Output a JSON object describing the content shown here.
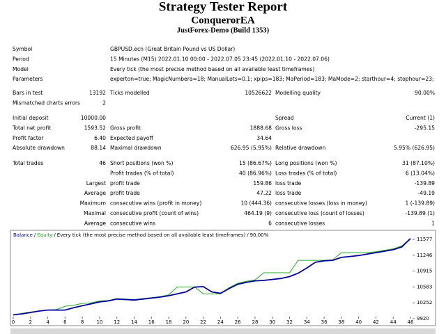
{
  "header": {
    "title": "Strategy Tester Report",
    "expert": "ConquerorEA",
    "server": "JustForex-Demo (Build 1353)"
  },
  "sections": [
    [
      {
        "l1": "Symbol",
        "text": "GBPUSD.ecn (Great Britain Pound vs US Dollar)"
      },
      {
        "l1": "Period",
        "text": "15 Minutes (M15) 2022.01.10 00:00 - 2022.07.05 23:45 (2022.01.10 - 2022.07.06)"
      },
      {
        "l1": "Model",
        "text": "Every tick (the most precise method based on all available least timeframes)"
      },
      {
        "l1": "Parameters",
        "text": "experton=true; MagicNumbera=18; ManualLots=0.1; xpips=183; MaPeriod=183; MaMode=2; starthour=4; stophour=23;"
      }
    ],
    [
      {
        "l1": "Bars in test",
        "v1": "13192",
        "l2": "Ticks modelled",
        "v2": "10526622",
        "l3": "Modelling quality",
        "v3": "90.00%"
      },
      {
        "l1": "Mismatched charts errors",
        "v1": "2"
      }
    ],
    [
      {
        "l1": "Initial deposit",
        "v1": "10000.00",
        "l3": "Spread",
        "v3": "Current (1)"
      },
      {
        "l1": "Total net profit",
        "v1": "1593.52",
        "l2": "Gross profit",
        "v2": "1888.68",
        "l3": "Gross loss",
        "v3": "-295.15"
      },
      {
        "l1": "Profit factor",
        "v1": "6.40",
        "l2": "Expected payoff",
        "v2": "34.64"
      },
      {
        "l1": "Absolute drawdown",
        "v1": "88.14",
        "l2": "Maximal drawdown",
        "v2": "626.95 (5.95%)",
        "l3": "Relative drawdown",
        "v3": "5.95% (626.95)"
      }
    ],
    [
      {
        "l1": "Total trades",
        "v1": "46",
        "l2": "Short positions (won %)",
        "v2": "15 (86.67%)",
        "l3": "Long positions (won %)",
        "v3": "31 (87.10%)"
      },
      {
        "l2": "Profit trades (% of total)",
        "v2": "40 (86.96%)",
        "l3": "Loss trades (% of total)",
        "v3": "6 (13.04%)"
      },
      {
        "v1": "Largest",
        "l2": "profit trade",
        "v2": "159.86",
        "l3": "loss trade",
        "v3": "-139.89"
      },
      {
        "v1": "Average",
        "l2": "profit trade",
        "v2": "47.22",
        "l3": "loss trade",
        "v3": "-49.19"
      },
      {
        "v1": "Maximum",
        "l2": "consecutive wins (profit in money)",
        "v2": "10 (444.36)",
        "l3": "consecutive losses (loss in money)",
        "v3": "1 (-139.89)"
      },
      {
        "v1": "Maximal",
        "l2": "consecutive profit (count of wins)",
        "v2": "464.19 (9)",
        "l3": "consecutive loss (count of losses)",
        "v3": "-139.89 (1)"
      },
      {
        "v1": "Average",
        "l2": "consecutive wins",
        "v2": "6",
        "l3": "consecutive losses",
        "v3": "1"
      }
    ]
  ],
  "chart_data": {
    "type": "line",
    "legend_separator": "/",
    "legend_note": "Every tick (the most precise method based on all available least timeframes)",
    "legend_quality": "90.00%",
    "x": [
      0,
      1,
      2,
      3,
      4,
      5,
      6,
      7,
      8,
      9,
      10,
      11,
      12,
      13,
      14,
      15,
      16,
      17,
      18,
      19,
      20,
      21,
      22,
      23,
      24,
      25,
      26,
      27,
      28,
      29,
      30,
      31,
      32,
      33,
      34,
      35,
      36,
      37,
      38,
      39,
      40,
      41,
      42,
      43,
      44,
      45,
      46
    ],
    "series": [
      {
        "name": "Balance",
        "color": "#0000a0",
        "values": [
          10000,
          10020,
          10050,
          10080,
          10100,
          10100,
          10100,
          10150,
          10190,
          10230,
          10270,
          10290,
          10330,
          10320,
          10310,
          10330,
          10350,
          10370,
          10400,
          10440,
          10480,
          10580,
          10590,
          10480,
          10450,
          10550,
          10640,
          10680,
          10710,
          10720,
          10740,
          10760,
          10800,
          10870,
          10980,
          11100,
          11130,
          11140,
          11200,
          11220,
          11240,
          11270,
          11300,
          11330,
          11360,
          11420,
          11594
        ]
      },
      {
        "name": "Equity",
        "color": "#22aa22",
        "values": [
          10000,
          10030,
          10060,
          10080,
          10100,
          10110,
          10180,
          10200,
          10240,
          10250,
          10290,
          10300,
          10340,
          10330,
          10320,
          10340,
          10360,
          10380,
          10420,
          10583,
          10583,
          10583,
          10440,
          10440,
          10440,
          10570,
          10660,
          10700,
          10730,
          10880,
          10880,
          10880,
          10880,
          11140,
          11140,
          11140,
          11140,
          11150,
          11300,
          11300,
          11300,
          11300,
          11320,
          11350,
          11380,
          11440,
          11594
        ]
      }
    ],
    "xlim": [
      0,
      46
    ],
    "xticks": [
      0,
      2,
      4,
      6,
      8,
      10,
      12,
      14,
      16,
      18,
      20,
      22,
      24,
      26,
      28,
      30,
      32,
      34,
      36,
      38,
      40,
      42,
      44,
      46
    ],
    "ylim": [
      9920,
      11577
    ],
    "yticks": [
      9920,
      10252,
      10583,
      10915,
      11246,
      11577
    ]
  }
}
